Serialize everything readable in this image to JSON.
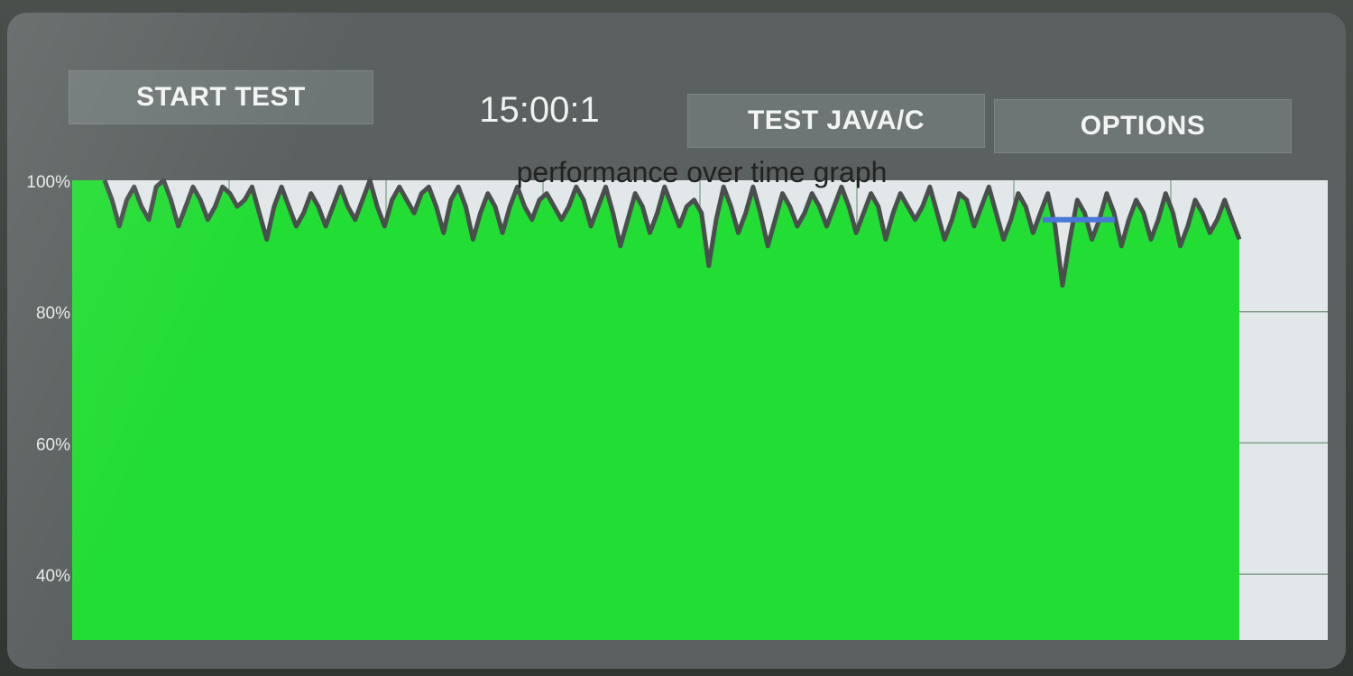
{
  "toolbar": {
    "start_label": "START TEST",
    "clock": "15:00:1",
    "java_label": "TEST JAVA/C",
    "options_label": "OPTIONS"
  },
  "chart_data": {
    "type": "area",
    "title": "performance over time graph",
    "y_tick_labels": [
      "100%",
      "80%",
      "60%",
      "40%"
    ],
    "ylim": [
      30,
      100
    ],
    "grid": true,
    "colors": {
      "fill": "#22dd33",
      "line": "#4a4f4e",
      "background": "#e2e8ea",
      "marker": "#4a78d8"
    },
    "marker_value": 94,
    "values": [
      100,
      97,
      93,
      97,
      99,
      96,
      94,
      99,
      100,
      97,
      93,
      96,
      99,
      97,
      94,
      96,
      99,
      98,
      96,
      97,
      99,
      95,
      91,
      96,
      99,
      96,
      93,
      95,
      98,
      96,
      93,
      96,
      99,
      96,
      94,
      97,
      100,
      96,
      93,
      97,
      99,
      97,
      95,
      98,
      99,
      96,
      92,
      97,
      99,
      96,
      91,
      95,
      98,
      96,
      92,
      96,
      99,
      96,
      94,
      97,
      98,
      96,
      94,
      96,
      99,
      97,
      93,
      96,
      99,
      95,
      90,
      94,
      98,
      96,
      92,
      95,
      99,
      96,
      93,
      96,
      97,
      95,
      87,
      94,
      99,
      96,
      92,
      95,
      99,
      95,
      90,
      94,
      98,
      96,
      93,
      95,
      98,
      96,
      93,
      96,
      99,
      96,
      92,
      95,
      98,
      96,
      91,
      95,
      98,
      96,
      94,
      96,
      99,
      95,
      91,
      94,
      98,
      97,
      93,
      96,
      99,
      95,
      91,
      94,
      98,
      96,
      92,
      95,
      98,
      93,
      84,
      91,
      97,
      95,
      91,
      94,
      98,
      95,
      90,
      94,
      97,
      95,
      91,
      94,
      98,
      95,
      90,
      93,
      97,
      95,
      92,
      94,
      97,
      94,
      91
    ]
  }
}
